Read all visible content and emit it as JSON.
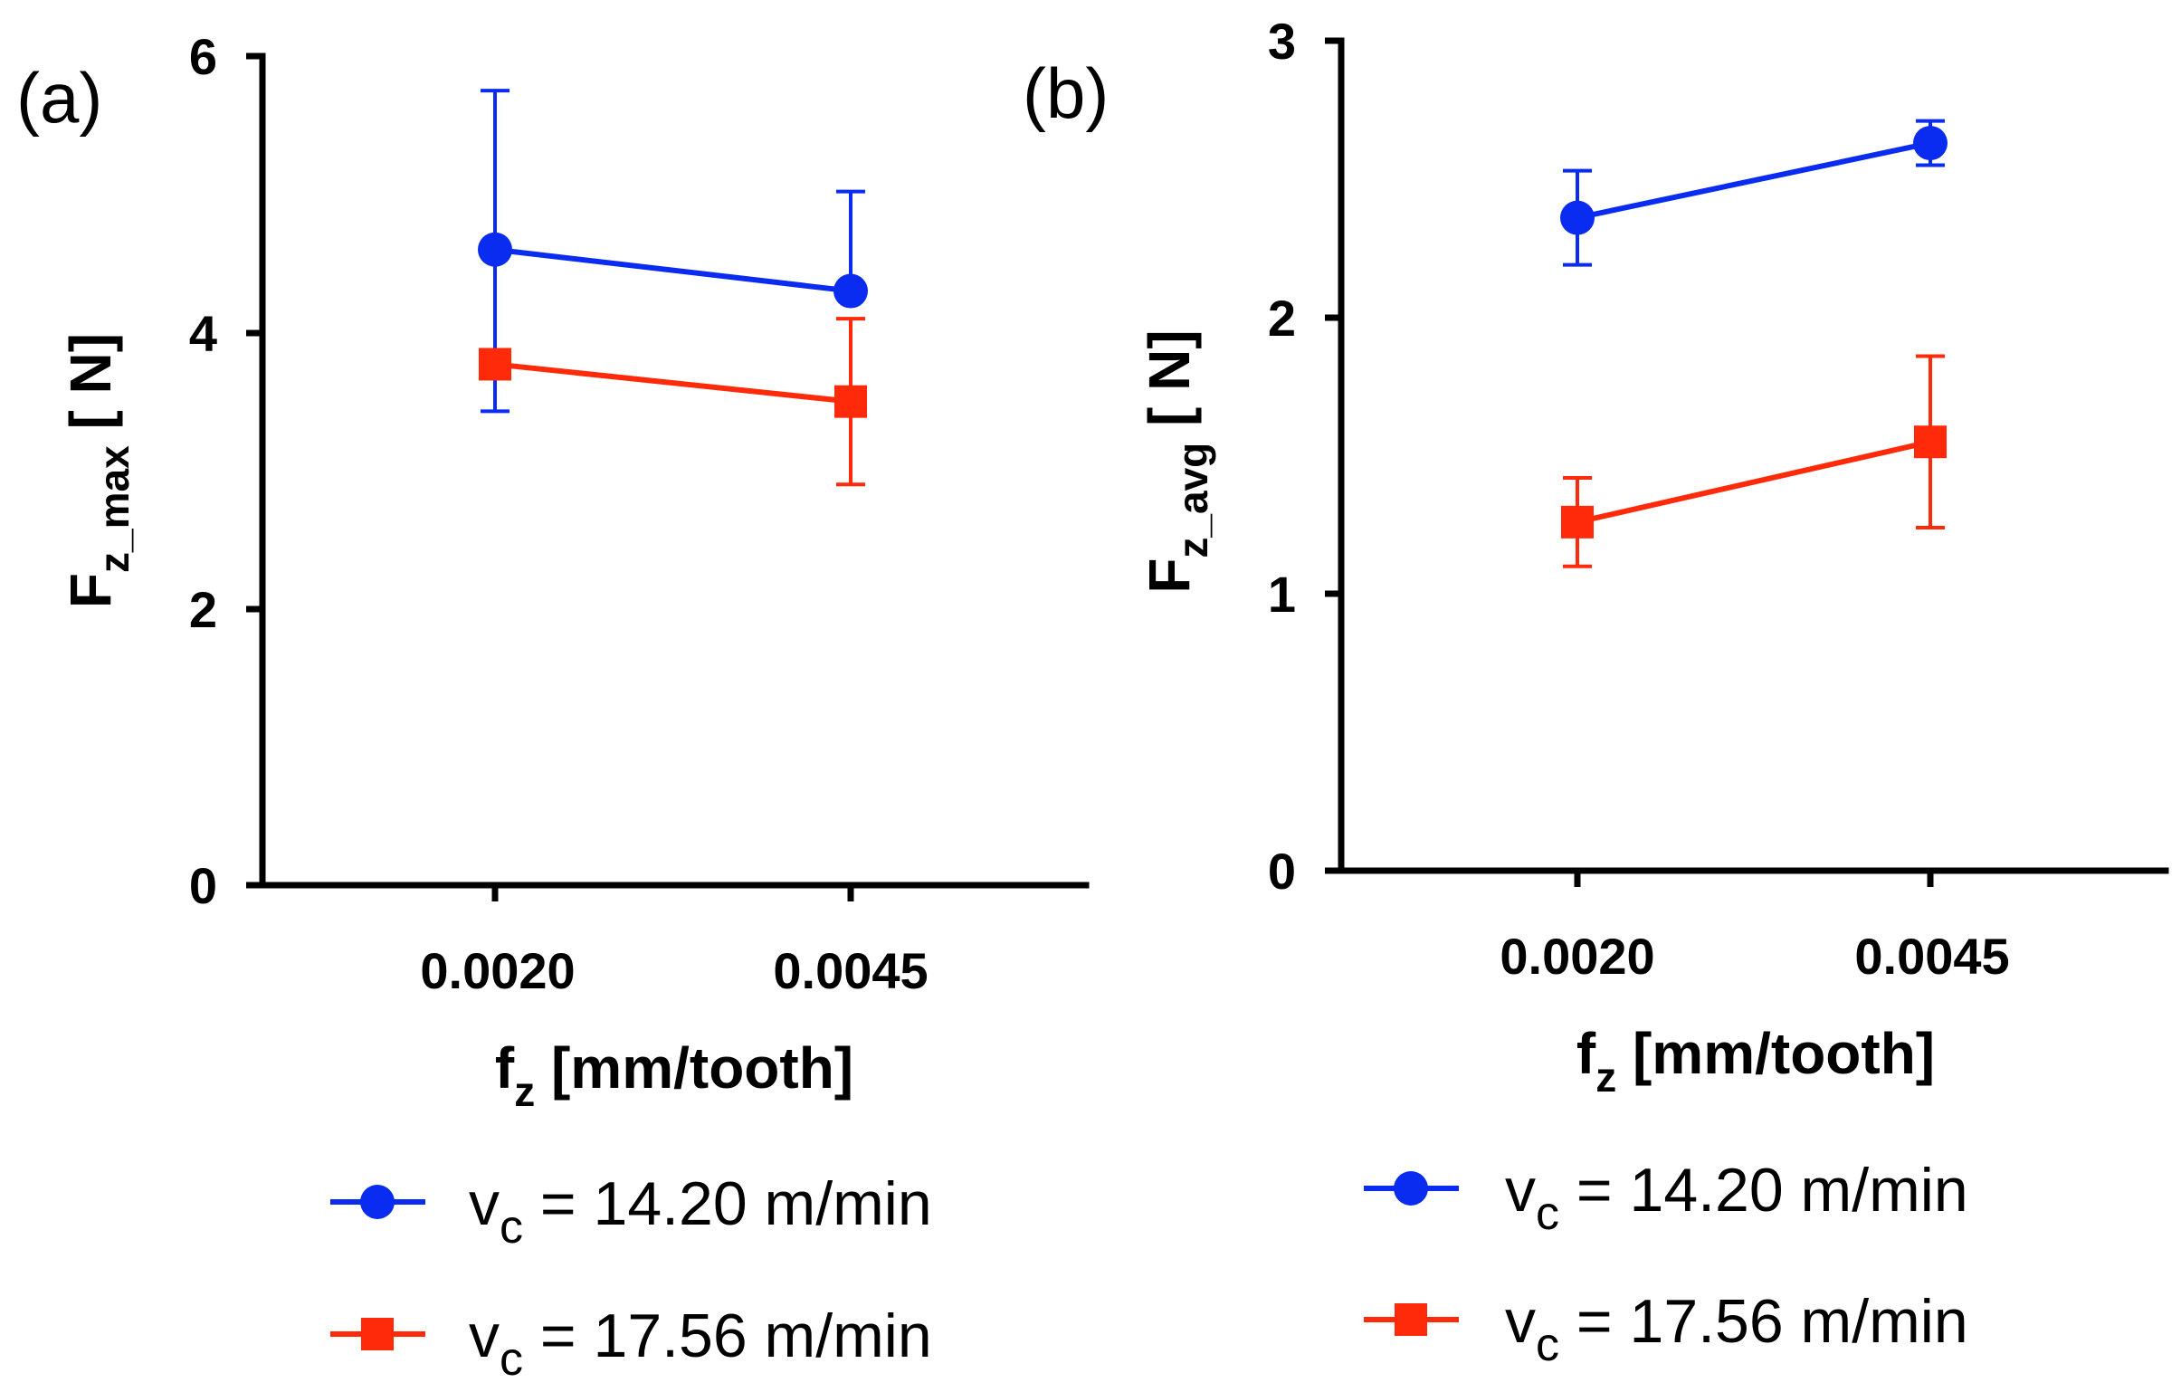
{
  "colors": {
    "series1": "#0a2cf0",
    "series2": "#ff2a0a",
    "axis": "#000000"
  },
  "chart_data": [
    {
      "panel": "(a)",
      "type": "line",
      "categories": [
        "0.0020",
        "0.0045"
      ],
      "xlabel_main": "f",
      "xlabel_sub": "z",
      "xlabel_rest": " [mm/tooth]",
      "ylabel_main": "F",
      "ylabel_sub": "z_max",
      "ylabel_rest": " [ N]",
      "ylim": [
        0,
        6
      ],
      "yticks": [
        "0",
        "2",
        "4",
        "6"
      ],
      "grid": false,
      "series": [
        {
          "name": "v_c = 14.20 m/min",
          "label_main": "v",
          "label_sub": "c",
          "label_rest": " = 14.20 m/min",
          "marker": "circle",
          "values": [
            4.6,
            4.3
          ],
          "err_low": [
            1.17,
            0
          ],
          "err_high": [
            1.15,
            0.72
          ]
        },
        {
          "name": "v_c = 17.56 m/min",
          "label_main": "v",
          "label_sub": "c",
          "label_rest": " = 17.56 m/min",
          "marker": "square",
          "values": [
            3.77,
            3.5
          ],
          "err_low": [
            0,
            0.6
          ],
          "err_high": [
            0,
            0.6
          ]
        }
      ]
    },
    {
      "panel": "(b)",
      "type": "line",
      "categories": [
        "0.0020",
        "0.0045"
      ],
      "xlabel_main": "f",
      "xlabel_sub": "z",
      "xlabel_rest": " [mm/tooth]",
      "ylabel_main": "F",
      "ylabel_sub": "z_avg",
      "ylabel_rest": " [ N]",
      "ylim": [
        0,
        3
      ],
      "yticks": [
        "0",
        "1",
        "2",
        "3"
      ],
      "grid": false,
      "series": [
        {
          "name": "v_c = 14.20 m/min",
          "label_main": "v",
          "label_sub": "c",
          "label_rest": " = 14.20 m/min",
          "marker": "circle",
          "values": [
            2.36,
            2.63
          ],
          "err_low": [
            0.17,
            0.08
          ],
          "err_high": [
            0.17,
            0.08
          ]
        },
        {
          "name": "v_c = 17.56 m/min",
          "label_main": "v",
          "label_sub": "c",
          "label_rest": " = 17.56 m/min",
          "marker": "square",
          "values": [
            1.26,
            1.55
          ],
          "err_low": [
            0.16,
            0.31
          ],
          "err_high": [
            0.16,
            0.31
          ]
        }
      ]
    }
  ]
}
